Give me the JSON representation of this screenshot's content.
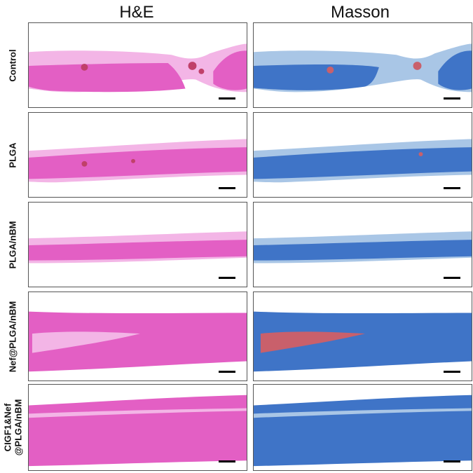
{
  "columns": [
    "H&E",
    "Masson"
  ],
  "rows": [
    {
      "label": "Control"
    },
    {
      "label": "PLGA"
    },
    {
      "label": "PLGA/nBM"
    },
    {
      "label": "Nef@PLGA/nBM"
    },
    {
      "label": "CIGF1&Nef\n@PLGA/nBM"
    }
  ],
  "stain_colors": {
    "he_tissue": "#e35fc4",
    "he_light": "#f3b5e6",
    "masson_tissue": "#3f74c7",
    "masson_light": "#a9c6e6",
    "masson_red": "#c9606b"
  }
}
